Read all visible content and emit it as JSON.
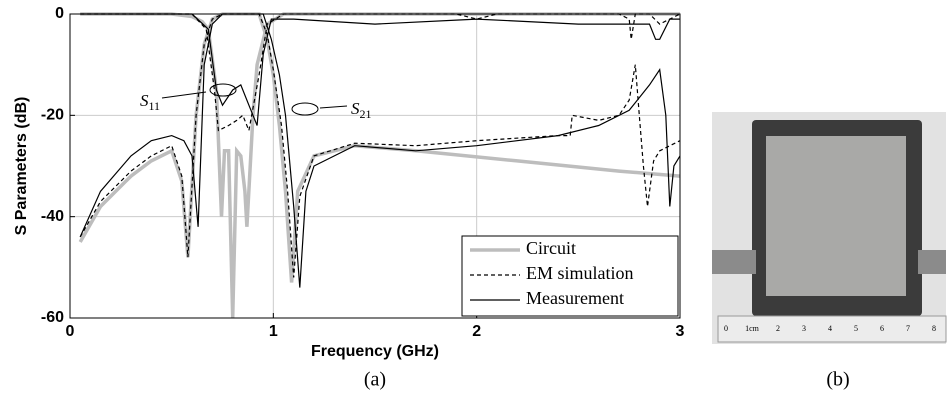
{
  "chart_data": {
    "type": "line",
    "xlabel": "Frequency (GHz)",
    "ylabel": "S Parameters (dB)",
    "xlim": [
      0,
      3
    ],
    "ylim": [
      -60,
      0
    ],
    "xticks": [
      0,
      1,
      2,
      3
    ],
    "yticks": [
      0,
      -20,
      -40,
      -60
    ],
    "grid": true,
    "legend": "lower right",
    "series": [
      {
        "name": "Circuit",
        "color": "#bdbdbd",
        "dash": "solid",
        "width": 3.5,
        "curves": [
          {
            "x": [
              0.05,
              0.15,
              0.3,
              0.4,
              0.5,
              0.55,
              0.58,
              0.62,
              0.66,
              0.7,
              0.75,
              0.85,
              0.93,
              0.97,
              1.0,
              1.03,
              1.06,
              1.09,
              1.12,
              1.2,
              1.4,
              1.7,
              2.2,
              2.7,
              3.0
            ],
            "values": [
              -45,
              -38,
              -32,
              -29,
              -27,
              -33,
              -48,
              -20,
              -6,
              -1,
              0,
              0,
              0,
              -5,
              -12,
              -22,
              -35,
              -53,
              -35,
              -28,
              -26,
              -27,
              -29,
              -31,
              -32
            ]
          },
          {
            "x": [
              0.05,
              0.5,
              0.6,
              0.65,
              0.68,
              0.72,
              0.745,
              0.76,
              0.78,
              0.8,
              0.82,
              0.84,
              0.86,
              0.87,
              0.9,
              0.92,
              0.97,
              1.05,
              2.0,
              3.0
            ],
            "values": [
              0,
              0,
              -0.5,
              -1.5,
              -3,
              -15,
              -40,
              -27,
              -27,
              -60,
              -27,
              -28,
              -35,
              -42,
              -20,
              -10,
              -2,
              0,
              0,
              0
            ]
          }
        ]
      },
      {
        "name": "EM simulation",
        "color": "#000000",
        "dash": "4,3",
        "width": 1.2,
        "curves": [
          {
            "x": [
              0.05,
              0.15,
              0.3,
              0.4,
              0.5,
              0.55,
              0.58,
              0.62,
              0.66,
              0.7,
              0.75,
              0.85,
              0.93,
              0.97,
              1.0,
              1.04,
              1.07,
              1.1,
              1.13,
              1.2,
              1.4,
              1.7,
              2.0,
              2.4,
              2.46,
              2.47,
              2.6,
              2.7,
              2.75,
              2.78,
              2.8,
              2.82,
              2.84,
              2.87,
              2.9,
              3.0
            ],
            "values": [
              -44,
              -37,
              -31,
              -28,
              -26,
              -32,
              -48,
              -20,
              -6,
              -1,
              0,
              0,
              0,
              -4,
              -11,
              -22,
              -35,
              -52,
              -36,
              -28,
              -25.5,
              -26,
              -25,
              -24,
              -24,
              -20,
              -21,
              -20,
              -17,
              -10,
              -20,
              -30,
              -38,
              -29,
              -27,
              -25
            ]
          },
          {
            "x": [
              0.05,
              0.6,
              0.67,
              0.71,
              0.73,
              0.78,
              0.82,
              0.85,
              0.88,
              0.93,
              0.97,
              1.05,
              1.9,
              2.0,
              2.1,
              2.7,
              2.75,
              2.76,
              2.78,
              2.85,
              2.9,
              3.0
            ],
            "values": [
              0,
              0,
              -3,
              -15,
              -23,
              -22,
              -21,
              -20,
              -23,
              -12,
              -2,
              0,
              0,
              -1,
              0,
              0,
              -1,
              -5,
              0,
              0,
              -2,
              0
            ]
          }
        ]
      },
      {
        "name": "Measurement",
        "color": "#000000",
        "dash": "solid",
        "width": 1.2,
        "curves": [
          {
            "x": [
              0.05,
              0.15,
              0.3,
              0.4,
              0.5,
              0.56,
              0.6,
              0.63,
              0.66,
              0.7,
              0.75,
              0.9,
              0.95,
              0.99,
              1.03,
              1.06,
              1.1,
              1.13,
              1.16,
              1.2,
              1.4,
              1.7,
              2.0,
              2.4,
              2.6,
              2.75,
              2.85,
              2.9,
              2.93,
              2.95,
              2.97,
              3.0
            ],
            "values": [
              -44,
              -35,
              -28,
              -25,
              -24,
              -25,
              -28,
              -42,
              -10,
              -2,
              0,
              0,
              0,
              -5,
              -12,
              -20,
              -38,
              -54,
              -35,
              -30,
              -26,
              -27,
              -26,
              -24,
              -22,
              -19,
              -14,
              -11,
              -20,
              -38,
              -30,
              -28
            ]
          },
          {
            "x": [
              0.05,
              0.6,
              0.68,
              0.72,
              0.75,
              0.8,
              0.84,
              0.88,
              0.92,
              0.95,
              0.99,
              1.1,
              1.5,
              2.0,
              2.5,
              2.85,
              2.88,
              2.9,
              2.95,
              3.0
            ],
            "values": [
              0,
              0,
              -3,
              -15,
              -18,
              -15,
              -14,
              -18,
              -22,
              -8,
              -1,
              -1,
              -2,
              -1,
              -2,
              -2,
              -5,
              -5,
              -1,
              -1
            ]
          }
        ]
      }
    ],
    "annotations": [
      {
        "text": "S",
        "sub": "11"
      },
      {
        "text": "S",
        "sub": "21"
      }
    ],
    "captions": [
      "(a)",
      "(b)"
    ],
    "ruler_labels": [
      "0",
      "1cm",
      "2",
      "3",
      "4",
      "5",
      "6",
      "7",
      "8"
    ]
  }
}
